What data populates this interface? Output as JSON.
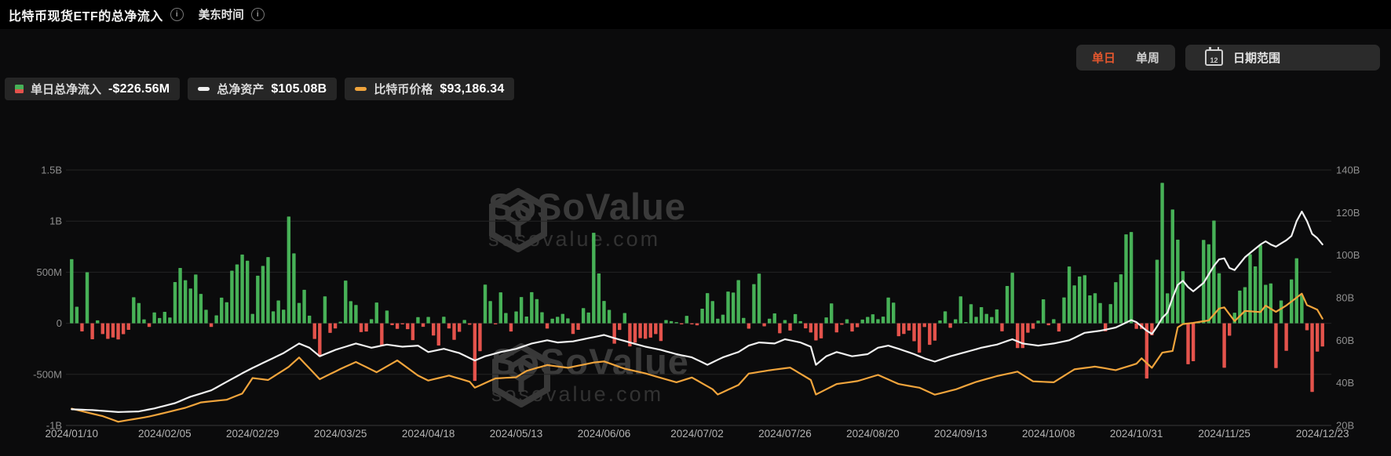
{
  "header": {
    "title": "比特币现货ETF的总净流入",
    "timezone_label": "美东时间",
    "info_icon_glyph": "i"
  },
  "toolbar": {
    "daily_label": "单日",
    "weekly_label": "单周",
    "date_range_label": "日期范围",
    "calendar_icon_number": "12",
    "active_tab": "单日",
    "accent_color": "#e4572e",
    "inactive_color": "#cfcfcf"
  },
  "legend": [
    {
      "label": "单日总净流入",
      "value": "-$226.56M",
      "swatch": "split-square",
      "color_top": "#47b157",
      "color_bottom": "#e4534c"
    },
    {
      "label": "总净资产",
      "value": "$105.08B",
      "swatch": "dash",
      "color": "#f0f0f0"
    },
    {
      "label": "比特币价格",
      "value": "$93,186.34",
      "swatch": "dash",
      "color": "#f0a43c"
    }
  ],
  "watermark": {
    "brand": "SoSoValue",
    "domain": "sosovalue.com"
  },
  "chart_data": {
    "type": "bar",
    "title": "比特币现货ETF的总净流入 (单日)",
    "grid": true,
    "legend_position": "top-left",
    "bar_unit": "$M",
    "x_tick_labels": [
      "2024/01/10",
      "2024/02/05",
      "2024/02/29",
      "2024/03/25",
      "2024/04/18",
      "2024/05/13",
      "2024/06/06",
      "2024/07/02",
      "2024/07/26",
      "2024/08/20",
      "2024/09/13",
      "2024/10/08",
      "2024/10/31",
      "2024/11/25",
      "2024/12/23"
    ],
    "x_tick_indices": [
      0,
      18,
      35,
      52,
      69,
      86,
      103,
      121,
      138,
      155,
      172,
      189,
      206,
      223,
      242
    ],
    "left_axis": {
      "title": "单日总净流入",
      "ticks": [
        "1.5B",
        "1B",
        "500M",
        "0",
        "-500M",
        "-1B"
      ],
      "tick_values_M": [
        1500,
        1000,
        500,
        0,
        -500,
        -1000
      ],
      "range_M": [
        -1000,
        1500
      ]
    },
    "right_axis": {
      "title": "总净资产",
      "ticks": [
        "140B",
        "120B",
        "100B",
        "80B",
        "60B",
        "40B",
        "20B"
      ],
      "tick_values_B": [
        140,
        120,
        100,
        80,
        60,
        40,
        20
      ],
      "range_B": [
        20,
        140
      ]
    },
    "colors": {
      "bar_positive": "#47b157",
      "bar_negative": "#e4534c",
      "assets_line": "#f0f0f0",
      "price_line": "#f0a43c",
      "gridline": "#242424",
      "baseline": "#3a3a3a",
      "axis_text": "#8f8f8f",
      "x_axis_text": "#b3b3b3"
    },
    "series": [
      {
        "name": "单日总净流入",
        "type": "bar",
        "unit": "$M",
        "values": [
          628,
          162,
          -80,
          499,
          -156,
          29,
          -106,
          -153,
          -139,
          -158,
          -107,
          -64,
          255,
          198,
          38,
          -36,
          106,
          52,
          112,
          56,
          403,
          541,
          422,
          340,
          477,
          287,
          132,
          -36,
          77,
          251,
          206,
          515,
          576,
          673,
          612,
          92,
          466,
          562,
          648,
          117,
          223,
          133,
          1045,
          684,
          199,
          328,
          75,
          -154,
          -326,
          263,
          -94,
          -51,
          15,
          418,
          216,
          179,
          -86,
          -81,
          40,
          203,
          -223,
          124,
          -18,
          -55,
          -5,
          -58,
          -165,
          60,
          -35,
          62,
          -120,
          -218,
          64,
          -51,
          -162,
          -84,
          32,
          -15,
          -564,
          -273,
          378,
          217,
          -11,
          303,
          100,
          -81,
          116,
          257,
          66,
          305,
          237,
          108,
          -52,
          45,
          63,
          92,
          48,
          -105,
          -64,
          148,
          105,
          886,
          488,
          218,
          131,
          -200,
          -65,
          100,
          -226,
          -190,
          -146,
          -152,
          -140,
          -106,
          -174,
          31,
          21,
          11,
          -11,
          73,
          -8,
          -20,
          143,
          295,
          217,
          45,
          84,
          310,
          301,
          423,
          53,
          -53,
          383,
          486,
          -30,
          45,
          97,
          -98,
          31,
          -71,
          90,
          21,
          -50,
          -90,
          -168,
          -148,
          57,
          194,
          -89,
          -15,
          39,
          -81,
          -39,
          36,
          62,
          88,
          40,
          65,
          252,
          202,
          -127,
          -105,
          -71,
          -176,
          -288,
          -37,
          -211,
          -170,
          28,
          117,
          -44,
          39,
          263,
          12,
          187,
          63,
          158,
          92,
          61,
          136,
          -79,
          365,
          494,
          -243,
          -243,
          -92,
          -54,
          26,
          235,
          -19,
          40,
          -81,
          253,
          556,
          371,
          458,
          470,
          273,
          294,
          198,
          -79,
          188,
          402,
          479,
          870,
          893,
          -55,
          -55,
          -541,
          -117,
          622,
          1374,
          293,
          1114,
          818,
          510,
          -401,
          -371,
          4,
          816,
          773,
          1005,
          490,
          -435,
          -122,
          103,
          320,
          354,
          676,
          557,
          766,
          377,
          390,
          -438,
          223,
          -270,
          429,
          636,
          275,
          -68,
          -672,
          -277,
          -227
        ]
      },
      {
        "name": "总净资产",
        "type": "line",
        "unit": "$B",
        "axis": "right",
        "points": [
          [
            0,
            27.6
          ],
          [
            4,
            27.2
          ],
          [
            9,
            26.3
          ],
          [
            13,
            26.6
          ],
          [
            16,
            28
          ],
          [
            20,
            30.5
          ],
          [
            23,
            33.5
          ],
          [
            27,
            36.5
          ],
          [
            30,
            40.5
          ],
          [
            33,
            44.5
          ],
          [
            35,
            47
          ],
          [
            38,
            50.5
          ],
          [
            41,
            54
          ],
          [
            44,
            58.5
          ],
          [
            46,
            56.5
          ],
          [
            48,
            52.5
          ],
          [
            51,
            55.5
          ],
          [
            55,
            58.5
          ],
          [
            58,
            56.5
          ],
          [
            61,
            58
          ],
          [
            64,
            57
          ],
          [
            67,
            57.5
          ],
          [
            69,
            54.5
          ],
          [
            72,
            56
          ],
          [
            75,
            54
          ],
          [
            78,
            50.5
          ],
          [
            80,
            52.5
          ],
          [
            83,
            54.5
          ],
          [
            86,
            56
          ],
          [
            89,
            58.5
          ],
          [
            92,
            60
          ],
          [
            94,
            59
          ],
          [
            97,
            59.5
          ],
          [
            101,
            61.5
          ],
          [
            103,
            62.5
          ],
          [
            105,
            61
          ],
          [
            108,
            59
          ],
          [
            111,
            57
          ],
          [
            114,
            55.5
          ],
          [
            117,
            53.5
          ],
          [
            120,
            52
          ],
          [
            123,
            48.5
          ],
          [
            126,
            52
          ],
          [
            129,
            54.5
          ],
          [
            131,
            57.5
          ],
          [
            133,
            59
          ],
          [
            136,
            58.5
          ],
          [
            138,
            60.5
          ],
          [
            141,
            59
          ],
          [
            143,
            57
          ],
          [
            144,
            48.5
          ],
          [
            146,
            52.5
          ],
          [
            148,
            54.5
          ],
          [
            151,
            52.5
          ],
          [
            154,
            53.5
          ],
          [
            156,
            56.5
          ],
          [
            158,
            57.5
          ],
          [
            160,
            56
          ],
          [
            163,
            53.5
          ],
          [
            165,
            51.5
          ],
          [
            167,
            50
          ],
          [
            170,
            52.5
          ],
          [
            173,
            54.5
          ],
          [
            176,
            56.5
          ],
          [
            179,
            58
          ],
          [
            182,
            60.5
          ],
          [
            184,
            58.5
          ],
          [
            187,
            57.5
          ],
          [
            190,
            58.5
          ],
          [
            193,
            60
          ],
          [
            196,
            63.5
          ],
          [
            199,
            64.5
          ],
          [
            202,
            66
          ],
          [
            205,
            69.5
          ],
          [
            206,
            68.5
          ],
          [
            208,
            64.5
          ],
          [
            209,
            63
          ],
          [
            210,
            66.5
          ],
          [
            211,
            70.5
          ],
          [
            212,
            73
          ],
          [
            213,
            80
          ],
          [
            214,
            86
          ],
          [
            215,
            88
          ],
          [
            216,
            85
          ],
          [
            217,
            83
          ],
          [
            219,
            87
          ],
          [
            221,
            95
          ],
          [
            222,
            98
          ],
          [
            223,
            98.5
          ],
          [
            224,
            94
          ],
          [
            225,
            93
          ],
          [
            226,
            96
          ],
          [
            227,
            99
          ],
          [
            228,
            101
          ],
          [
            229,
            103
          ],
          [
            230,
            105
          ],
          [
            231,
            106.5
          ],
          [
            232,
            105
          ],
          [
            233,
            104
          ],
          [
            234,
            105.5
          ],
          [
            235,
            107
          ],
          [
            236,
            109
          ],
          [
            237,
            116
          ],
          [
            238,
            120.5
          ],
          [
            239,
            116
          ],
          [
            240,
            110
          ],
          [
            241,
            108
          ],
          [
            242,
            105.08
          ]
        ]
      },
      {
        "name": "比特币价格",
        "type": "line",
        "unit": "$",
        "axis": "price-hidden",
        "scale_range_usd": [
          38000,
          170000
        ],
        "points": [
          [
            0,
            46650
          ],
          [
            6,
            42800
          ],
          [
            9,
            39900
          ],
          [
            15,
            42600
          ],
          [
            22,
            47100
          ],
          [
            25,
            49900
          ],
          [
            30,
            51300
          ],
          [
            33,
            54500
          ],
          [
            35,
            62500
          ],
          [
            38,
            61500
          ],
          [
            42,
            68300
          ],
          [
            44,
            73100
          ],
          [
            48,
            61900
          ],
          [
            52,
            67200
          ],
          [
            55,
            70800
          ],
          [
            59,
            65500
          ],
          [
            63,
            71600
          ],
          [
            67,
            63800
          ],
          [
            69,
            61200
          ],
          [
            73,
            63800
          ],
          [
            77,
            60600
          ],
          [
            78,
            57500
          ],
          [
            82,
            62300
          ],
          [
            86,
            62900
          ],
          [
            88,
            66200
          ],
          [
            92,
            69200
          ],
          [
            96,
            67800
          ],
          [
            101,
            70500
          ],
          [
            103,
            71100
          ],
          [
            107,
            67300
          ],
          [
            111,
            64900
          ],
          [
            115,
            61800
          ],
          [
            117,
            60300
          ],
          [
            120,
            62800
          ],
          [
            124,
            56700
          ],
          [
            125,
            54000
          ],
          [
            129,
            58900
          ],
          [
            131,
            64800
          ],
          [
            135,
            66500
          ],
          [
            139,
            67900
          ],
          [
            143,
            61500
          ],
          [
            144,
            54000
          ],
          [
            148,
            59400
          ],
          [
            152,
            60900
          ],
          [
            156,
            64100
          ],
          [
            160,
            59400
          ],
          [
            164,
            57500
          ],
          [
            167,
            53900
          ],
          [
            171,
            56600
          ],
          [
            175,
            60500
          ],
          [
            179,
            63500
          ],
          [
            183,
            65800
          ],
          [
            186,
            60800
          ],
          [
            190,
            60300
          ],
          [
            194,
            67000
          ],
          [
            198,
            68400
          ],
          [
            202,
            66600
          ],
          [
            206,
            69900
          ],
          [
            207,
            72700
          ],
          [
            209,
            67800
          ],
          [
            211,
            75600
          ],
          [
            213,
            76500
          ],
          [
            214,
            88700
          ],
          [
            215,
            90400
          ],
          [
            217,
            91000
          ],
          [
            220,
            92300
          ],
          [
            222,
            98400
          ],
          [
            223,
            99000
          ],
          [
            225,
            91900
          ],
          [
            227,
            97200
          ],
          [
            230,
            96600
          ],
          [
            231,
            99900
          ],
          [
            233,
            96700
          ],
          [
            235,
            100000
          ],
          [
            238,
            106100
          ],
          [
            239,
            100200
          ],
          [
            241,
            97800
          ],
          [
            242,
            93186
          ]
        ]
      }
    ],
    "latest": {
      "daily_net_inflow": "-$226.56M",
      "total_net_assets": "$105.08B",
      "btc_price": "$93,186.34"
    }
  }
}
